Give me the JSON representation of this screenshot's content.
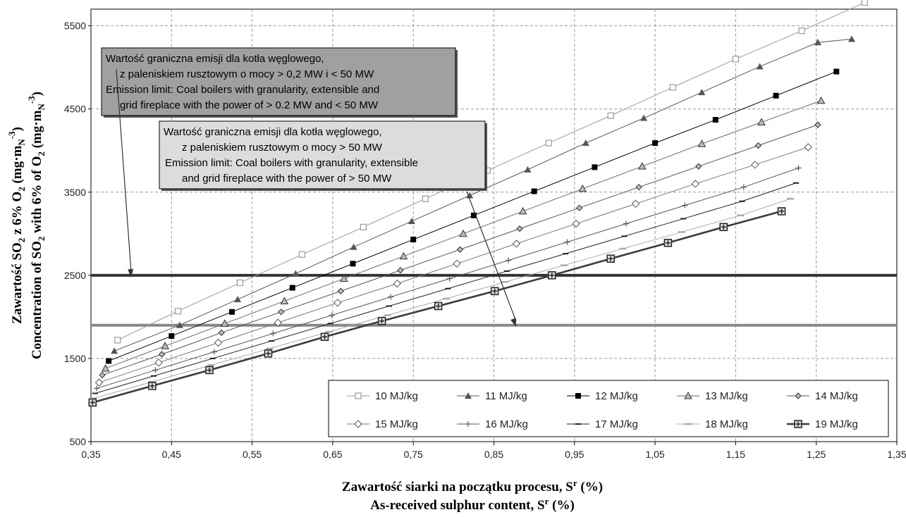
{
  "chart_data": {
    "type": "line",
    "xlabel_lines": [
      "Zawartość siarki na początku procesu, S",
      "As-received sulphur content, S"
    ],
    "xlabel_superscript": "r",
    "xlabel_suffix": " (%)",
    "ylabel_line1": [
      "Zawartość SO",
      "2",
      " z 6% O",
      "2",
      " (mg·m",
      "N",
      "-3",
      ")"
    ],
    "ylabel_line2": [
      "Concentration of  SO",
      "2",
      " with 6% of O",
      "2",
      " (mg·m",
      "N",
      "-3",
      ")"
    ],
    "xlim": [
      0.35,
      1.35
    ],
    "ylim": [
      500,
      5700
    ],
    "x_ticks": [
      0.35,
      0.45,
      0.55,
      0.65,
      0.75,
      0.85,
      0.95,
      1.05,
      1.15,
      1.25,
      1.35
    ],
    "x_tick_labels": [
      "0,35",
      "0,45",
      "0,55",
      "0,65",
      "0,75",
      "0,85",
      "0,95",
      "1,05",
      "1,15",
      "1,25",
      "1,35"
    ],
    "y_ticks": [
      500,
      1500,
      2500,
      3500,
      4500,
      5500
    ],
    "y_tick_labels": [
      "500",
      "1500",
      "2500",
      "3500",
      "4500",
      "5500"
    ],
    "grid": true,
    "legend_position": "bottom-right",
    "series": [
      {
        "name": "10 MJ/kg",
        "marker": "square-open",
        "color": "#9a9a9a",
        "x": [
          0.383,
          0.458,
          0.535,
          0.612,
          0.688,
          0.765,
          0.842,
          0.918,
          0.995,
          1.072,
          1.15,
          1.232,
          1.31
        ],
        "y": [
          1720,
          2070,
          2410,
          2750,
          3080,
          3420,
          3760,
          4090,
          4420,
          4760,
          5100,
          5440,
          5780
        ]
      },
      {
        "name": "11 MJ/kg",
        "marker": "triangle-filled",
        "color": "#555555",
        "x": [
          0.379,
          0.46,
          0.532,
          0.604,
          0.676,
          0.748,
          0.82,
          0.892,
          0.964,
          1.036,
          1.108,
          1.18,
          1.252,
          1.294
        ],
        "y": [
          1590,
          1900,
          2210,
          2520,
          2840,
          3150,
          3460,
          3770,
          4090,
          4390,
          4700,
          5010,
          5300,
          5340
        ]
      },
      {
        "name": "12 MJ/kg",
        "marker": "square-filled",
        "color": "#000000",
        "x": [
          0.372,
          0.45,
          0.525,
          0.6,
          0.675,
          0.75,
          0.825,
          0.9,
          0.975,
          1.05,
          1.125,
          1.2,
          1.275
        ],
        "y": [
          1470,
          1770,
          2060,
          2350,
          2640,
          2930,
          3220,
          3510,
          3800,
          4090,
          4370,
          4660,
          4950
        ]
      },
      {
        "name": "13 MJ/kg",
        "marker": "triangle-open",
        "color": "#666666",
        "x": [
          0.368,
          0.442,
          0.516,
          0.59,
          0.664,
          0.738,
          0.812,
          0.886,
          0.96,
          1.034,
          1.108,
          1.182,
          1.256
        ],
        "y": [
          1380,
          1650,
          1920,
          2190,
          2460,
          2730,
          3000,
          3270,
          3540,
          3810,
          4080,
          4340,
          4600
        ]
      },
      {
        "name": "14 MJ/kg",
        "marker": "diamond-small",
        "color": "#555555",
        "x": [
          0.364,
          0.438,
          0.512,
          0.586,
          0.66,
          0.734,
          0.808,
          0.882,
          0.956,
          1.03,
          1.104,
          1.178,
          1.252
        ],
        "y": [
          1300,
          1550,
          1810,
          2060,
          2310,
          2560,
          2810,
          3060,
          3310,
          3560,
          3810,
          4060,
          4310
        ]
      },
      {
        "name": "15 MJ/kg",
        "marker": "diamond-open",
        "color": "#777777",
        "x": [
          0.36,
          0.434,
          0.508,
          0.582,
          0.656,
          0.73,
          0.804,
          0.878,
          0.952,
          1.026,
          1.1,
          1.174,
          1.24
        ],
        "y": [
          1210,
          1450,
          1690,
          1930,
          2170,
          2400,
          2640,
          2880,
          3120,
          3360,
          3600,
          3830,
          4040
        ]
      },
      {
        "name": "16 MJ/kg",
        "marker": "plus",
        "color": "#555555",
        "x": [
          0.357,
          0.43,
          0.503,
          0.576,
          0.649,
          0.722,
          0.795,
          0.868,
          0.941,
          1.014,
          1.087,
          1.16,
          1.228
        ],
        "y": [
          1140,
          1360,
          1580,
          1800,
          2020,
          2240,
          2460,
          2680,
          2900,
          3120,
          3340,
          3560,
          3790
        ]
      },
      {
        "name": "17 MJ/kg",
        "marker": "dash",
        "color": "#222222",
        "x": [
          0.355,
          0.428,
          0.501,
          0.574,
          0.647,
          0.72,
          0.793,
          0.866,
          0.939,
          1.012,
          1.085,
          1.158,
          1.225
        ],
        "y": [
          1080,
          1290,
          1500,
          1710,
          1920,
          2130,
          2340,
          2550,
          2760,
          2970,
          3180,
          3390,
          3610
        ]
      },
      {
        "name": "18 MJ/kg",
        "marker": "dash-light",
        "color": "#aaaaaa",
        "x": [
          0.353,
          0.426,
          0.499,
          0.572,
          0.645,
          0.718,
          0.791,
          0.864,
          0.937,
          1.01,
          1.083,
          1.156,
          1.218
        ],
        "y": [
          1020,
          1220,
          1420,
          1620,
          1820,
          2020,
          2220,
          2420,
          2620,
          2820,
          3020,
          3220,
          3420
        ]
      },
      {
        "name": "19 MJ/kg",
        "marker": "square-plus",
        "color": "#3a3a3a",
        "x": [
          0.352,
          0.426,
          0.497,
          0.57,
          0.64,
          0.711,
          0.781,
          0.851,
          0.922,
          0.995,
          1.066,
          1.135,
          1.207
        ],
        "y": [
          970,
          1170,
          1360,
          1560,
          1760,
          1950,
          2130,
          2310,
          2500,
          2700,
          2890,
          3080,
          3270
        ]
      }
    ],
    "reference_lines": [
      {
        "y": 2500,
        "color": "#333333"
      },
      {
        "y": 1900,
        "color": "#888888"
      }
    ],
    "annotations": [
      {
        "lines": [
          "Wartość graniczna emisji dla kotła węglowego,",
          "z paleniskiem rusztowym o mocy > 0,2 MW i < 50 MW",
          "Emission limit: Coal boilers with granularity, extensible and",
          "grid fireplace with the power of > 0.2 MW and < 50 MW"
        ],
        "fill": "#a0a0a0"
      },
      {
        "lines": [
          "Wartość graniczna emisji dla kotła węglowego,",
          "z paleniskiem rusztowym o mocy > 50 MW",
          "Emission limit: Coal boilers with granularity, extensible",
          "and grid fireplace with the power of > 50 MW"
        ],
        "fill": "#dcdcdc"
      }
    ]
  }
}
